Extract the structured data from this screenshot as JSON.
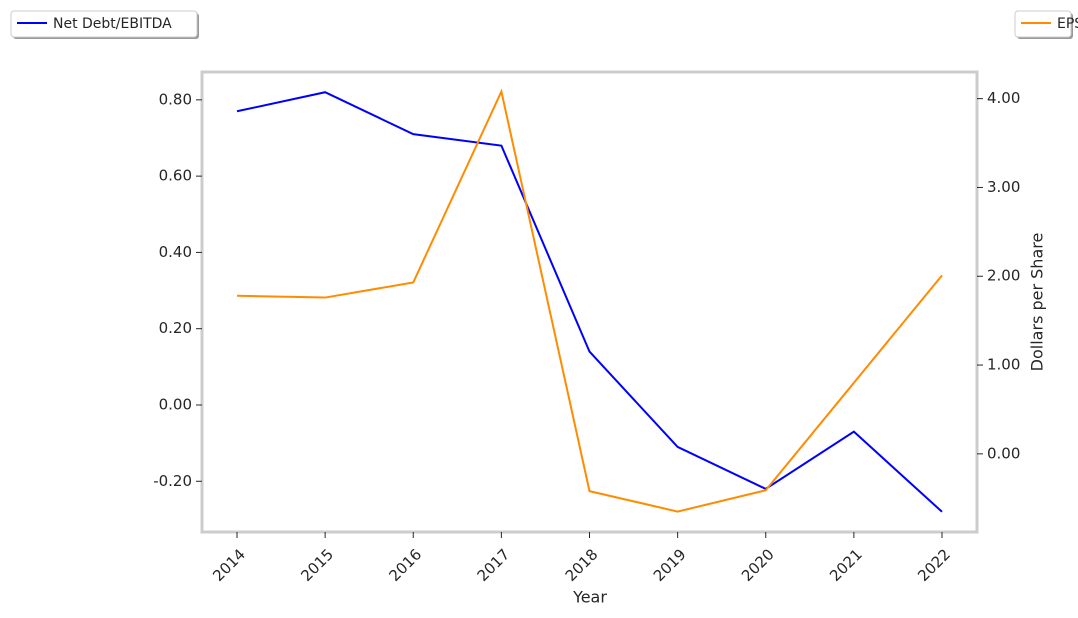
{
  "chart_data": {
    "type": "line",
    "x_label": "Year",
    "y2_label": "Dollars per Share",
    "categories": [
      "2014",
      "2015",
      "2016",
      "2017",
      "2018",
      "2019",
      "2020",
      "2021",
      "2022"
    ],
    "series": [
      {
        "name": "Net Debt/EBITDA",
        "color": "#0000ff",
        "values": [
          0.77,
          0.82,
          0.71,
          0.68,
          0.14,
          -0.11,
          -0.22,
          -0.07,
          -0.28
        ]
      },
      {
        "name": "EPS",
        "color": "#ff8c00",
        "axis": "y2",
        "values": [
          1.78,
          1.76,
          1.93,
          4.08,
          -0.42,
          -0.65,
          -0.41,
          0.8,
          2.01
        ]
      }
    ],
    "ylim": [
      -0.333,
      0.873
    ],
    "yticks": [
      {
        "value": -0.2,
        "label": "-0.20"
      },
      {
        "value": 0,
        "label": "0.00"
      },
      {
        "value": 0.2,
        "label": "0.20"
      },
      {
        "value": 0.4,
        "label": "0.40"
      },
      {
        "value": 0.6,
        "label": "0.60"
      },
      {
        "value": 0.8,
        "label": "0.80"
      }
    ],
    "y2lim": [
      -0.88,
      4.3
    ],
    "y2ticks": [
      {
        "value": 0,
        "label": "0.00"
      },
      {
        "value": 1,
        "label": "1.00"
      },
      {
        "value": 2,
        "label": "2.00"
      },
      {
        "value": 3,
        "label": "3.00"
      },
      {
        "value": 4,
        "label": "4.00"
      }
    ],
    "grid": false
  }
}
